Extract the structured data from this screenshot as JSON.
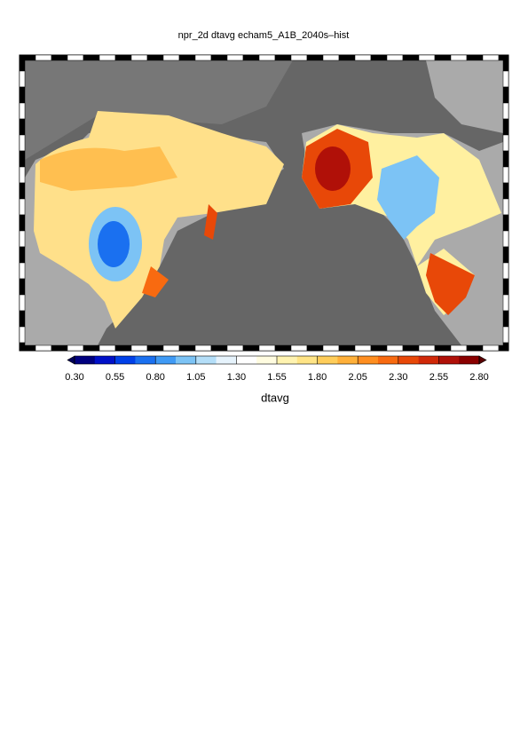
{
  "title": "npr_2d dtavg echam5_A1B_2040s–hist",
  "colorbar": {
    "label": "dtavg",
    "range": [
      0.3,
      2.8
    ],
    "ticks": [
      {
        "value": 0.3,
        "label": "0.30"
      },
      {
        "value": 0.55,
        "label": "0.55"
      },
      {
        "value": 0.8,
        "label": "0.80"
      },
      {
        "value": 1.05,
        "label": "1.05"
      },
      {
        "value": 1.3,
        "label": "1.30"
      },
      {
        "value": 1.55,
        "label": "1.55"
      },
      {
        "value": 1.8,
        "label": "1.80"
      },
      {
        "value": 2.05,
        "label": "2.05"
      },
      {
        "value": 2.3,
        "label": "2.30"
      },
      {
        "value": 2.55,
        "label": "2.55"
      },
      {
        "value": 2.8,
        "label": "2.80"
      }
    ],
    "colors": [
      "#00007f",
      "#0010c8",
      "#0040e8",
      "#1a70f0",
      "#3f9af5",
      "#7cc3f5",
      "#b4def8",
      "#e6f3fc",
      "#ffffff",
      "#fffce0",
      "#fff3b0",
      "#ffe486",
      "#ffcd5a",
      "#ffb03a",
      "#ff8e20",
      "#f86a10",
      "#e84808",
      "#d02808",
      "#b01008",
      "#8a0000"
    ],
    "under_color": "#00005a",
    "over_color": "#5a0000"
  }
}
